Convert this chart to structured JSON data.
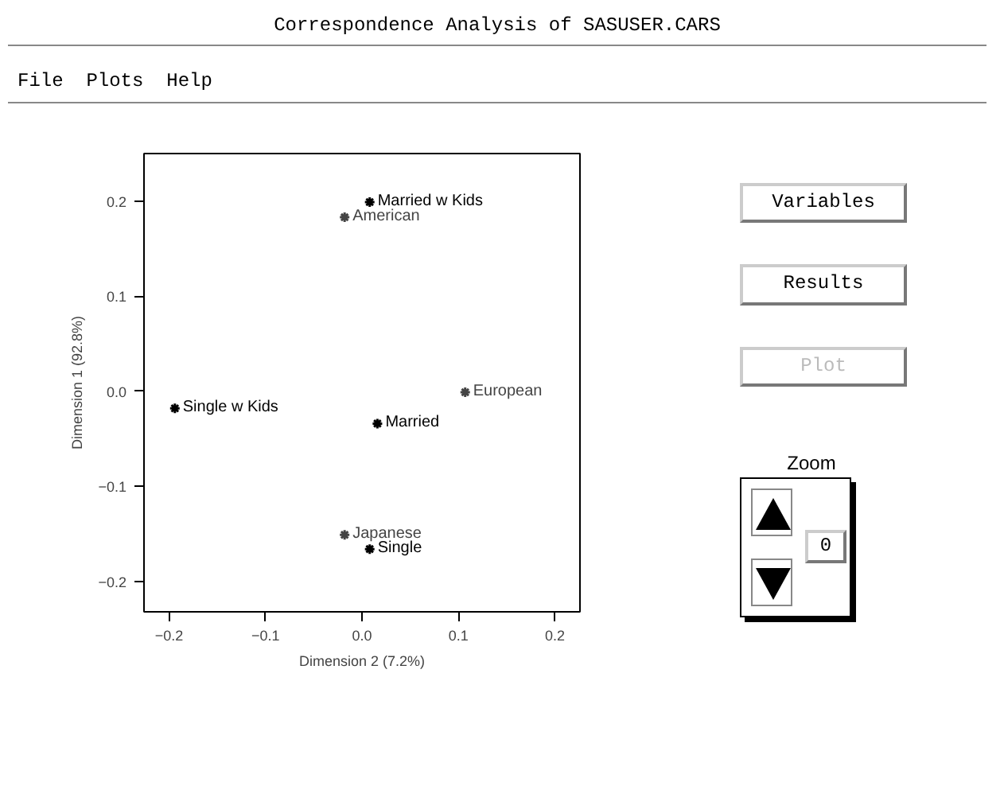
{
  "chart_data": {
    "type": "scatter",
    "title": "Correspondence Analysis of SASUSER.CARS",
    "xlabel": "Dimension 2 (7.2%)",
    "ylabel": "Dimension 1 (92.8%)",
    "xlim": [
      -0.226,
      0.226
    ],
    "ylim": [
      -0.232,
      0.25
    ],
    "xticks": [
      {
        "value": -0.2,
        "label": "−0.2"
      },
      {
        "value": -0.1,
        "label": "−0.1"
      },
      {
        "value": 0,
        "label": "0.0"
      },
      0.1,
      0.2
    ],
    "yticks": [
      {
        "value": -0.2,
        "label": "−0.2"
      },
      {
        "value": -0.1,
        "label": "−0.1"
      },
      {
        "value": 0,
        "label": "0.0"
      },
      0.1,
      0.2
    ],
    "marker": "cross",
    "series": [
      {
        "color": "#000000",
        "x": [
          0.008,
          -0.194,
          0.016,
          0.008
        ],
        "values": [
          0.199,
          -0.018,
          -0.034,
          -0.166
        ],
        "value_labels": [
          "Married w Kids",
          "Single w Kids",
          "Married",
          "Single"
        ]
      },
      {
        "color": "#444444",
        "x": [
          -0.018,
          0.107,
          -0.018
        ],
        "values": [
          0.183,
          -0.001,
          -0.151
        ],
        "value_labels": [
          "American",
          "European",
          "Japanese"
        ]
      }
    ],
    "annotations": [
      "File",
      "Plots",
      "Help",
      "Variables",
      "Results",
      "Plot",
      "Zoom",
      "0"
    ]
  }
}
